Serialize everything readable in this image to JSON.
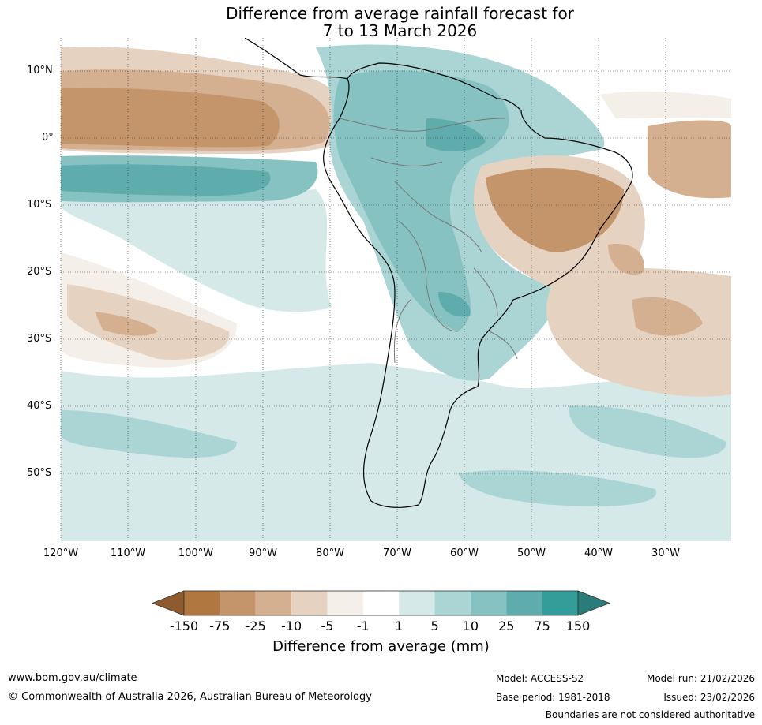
{
  "title_line1": "Difference from average rainfall forecast for",
  "title_line2": "7 to 13 March 2026",
  "lat_labels": [
    "10°N",
    "0°",
    "10°S",
    "20°S",
    "30°S",
    "40°S",
    "50°S"
  ],
  "lon_labels": [
    "120°W",
    "110°W",
    "100°W",
    "90°W",
    "80°W",
    "70°W",
    "60°W",
    "50°W",
    "40°W",
    "30°W"
  ],
  "colorbar": {
    "colors": [
      "#8e5a2e",
      "#b07840",
      "#c4956a",
      "#d4b090",
      "#e6d2c0",
      "#f4efe9",
      "#ffffff",
      "#d4e9e8",
      "#aad5d4",
      "#86c2c1",
      "#5eacab",
      "#349d9a",
      "#2a7c7a"
    ],
    "tick_labels": [
      "-150",
      "-75",
      "-25",
      "-10",
      "-5",
      "-1",
      "1",
      "5",
      "10",
      "25",
      "75",
      "150"
    ],
    "title": "Difference from average (mm)"
  },
  "footer": {
    "url": "www.bom.gov.au/climate",
    "copyright": "© Commonwealth of Australia 2026, Australian Bureau of Meteorology",
    "model": "Model: ACCESS-S2",
    "base_period": "Base period: 1981-2018",
    "model_run": "Model run: 21/02/2026",
    "issued": "Issued: 23/02/2026",
    "disclaimer": "Boundaries are not considered authoritative"
  }
}
